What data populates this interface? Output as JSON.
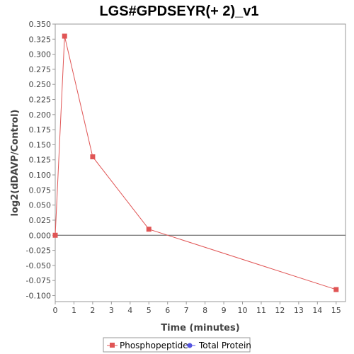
{
  "chart_data": {
    "type": "line",
    "title": "LGS#GPDSEYR(+ 2)_v1",
    "xlabel": "Time (minutes)",
    "ylabel": "log2(dDAVP/Control)",
    "xlim": [
      0,
      15.5
    ],
    "ylim": [
      -0.11,
      0.35
    ],
    "xticks": [
      0,
      1,
      2,
      3,
      4,
      5,
      6,
      7,
      8,
      9,
      10,
      11,
      12,
      13,
      14,
      15
    ],
    "yticks": [
      0.35,
      0.325,
      0.3,
      0.275,
      0.25,
      0.225,
      0.2,
      0.175,
      0.15,
      0.125,
      0.1,
      0.075,
      0.05,
      0.025,
      0.0,
      -0.025,
      -0.05,
      -0.075,
      -0.1
    ],
    "ytick_labels": [
      "0.350",
      "0.325",
      "0.300",
      "0.275",
      "0.250",
      "0.225",
      "0.200",
      "0.175",
      "0.150",
      "0.125",
      "0.100",
      "0.075",
      "0.050",
      "0.025",
      "0.000",
      "-0.025",
      "-0.050",
      "-0.075",
      "-0.100"
    ],
    "grid": false,
    "zero_line": true,
    "legend_position": "bottom",
    "series": [
      {
        "name": "Phosphopeptide",
        "color": "#e05555",
        "marker": "square",
        "x": [
          0,
          0.5,
          2,
          5,
          15
        ],
        "y": [
          0.0,
          0.33,
          0.13,
          0.01,
          -0.09
        ]
      },
      {
        "name": "Total Protein",
        "color": "#5555e0",
        "marker": "circle",
        "x": [],
        "y": []
      }
    ]
  }
}
